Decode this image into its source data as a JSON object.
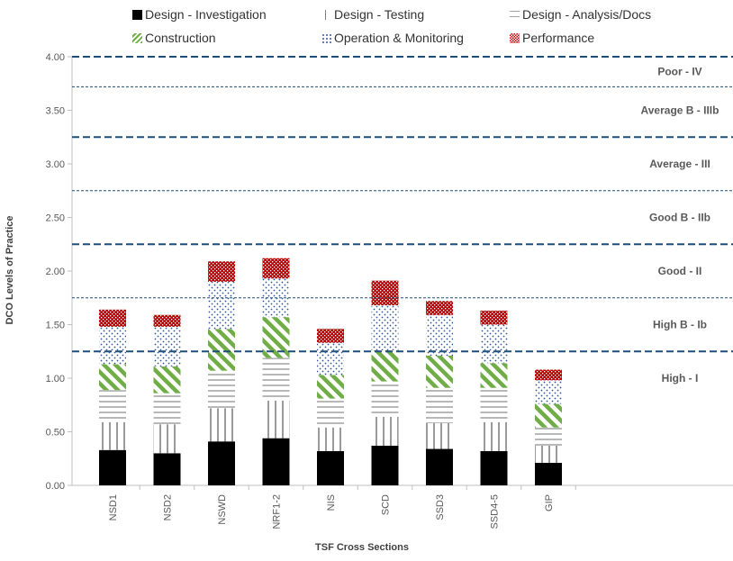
{
  "chart_data": {
    "type": "bar",
    "stacked": true,
    "xlabel": "TSF Cross Sections",
    "ylabel": "DCO Levels of Practice",
    "ylim": [
      0,
      4
    ],
    "yticks": [
      "0.00",
      "0.50",
      "1.00",
      "1.50",
      "2.00",
      "2.50",
      "3.00",
      "3.50",
      "4.00"
    ],
    "categories": [
      "NSD1",
      "NSD2",
      "NSWD",
      "NRF1-2",
      "NIS",
      "SCD",
      "SSD3",
      "SSD4-5",
      "GIP"
    ],
    "series": [
      {
        "name": "Design - Investigation",
        "pattern": "solid",
        "color": "#000000",
        "values": [
          0.33,
          0.3,
          0.41,
          0.44,
          0.32,
          0.37,
          0.34,
          0.32,
          0.21
        ]
      },
      {
        "name": "Design - Testing",
        "pattern": "vertical-lines",
        "color": "#808080",
        "values": [
          0.26,
          0.27,
          0.31,
          0.35,
          0.22,
          0.27,
          0.24,
          0.27,
          0.16
        ]
      },
      {
        "name": "Design - Analysis/Docs",
        "pattern": "horizontal-lines",
        "color": "#a6a6a6",
        "values": [
          0.3,
          0.29,
          0.35,
          0.4,
          0.27,
          0.33,
          0.33,
          0.32,
          0.17
        ]
      },
      {
        "name": "Construction",
        "pattern": "diagonal-stripes",
        "color": "#70ad47",
        "values": [
          0.24,
          0.25,
          0.39,
          0.38,
          0.22,
          0.29,
          0.3,
          0.23,
          0.22
        ]
      },
      {
        "name": "Operation & Monitoring",
        "pattern": "dots",
        "color": "#2f5597",
        "values": [
          0.35,
          0.37,
          0.44,
          0.36,
          0.3,
          0.42,
          0.38,
          0.36,
          0.22
        ]
      },
      {
        "name": "Performance",
        "pattern": "checks",
        "color": "#c00000",
        "values": [
          0.16,
          0.11,
          0.19,
          0.19,
          0.13,
          0.23,
          0.13,
          0.13,
          0.1
        ]
      }
    ],
    "thresholds": [
      {
        "value": 1.25,
        "style": "long-dash"
      },
      {
        "value": 1.75,
        "style": "short-dash"
      },
      {
        "value": 2.25,
        "style": "long-dash"
      },
      {
        "value": 2.75,
        "style": "short-dash"
      },
      {
        "value": 3.25,
        "style": "long-dash"
      },
      {
        "value": 3.72,
        "style": "short-dash"
      },
      {
        "value": 4.0,
        "style": "long-dash"
      }
    ],
    "zones": [
      {
        "label": "High - I",
        "value": 1.0
      },
      {
        "label": "High B - Ib",
        "value": 1.5
      },
      {
        "label": "Good - II",
        "value": 2.0
      },
      {
        "label": "Good B - IIb",
        "value": 2.5
      },
      {
        "label": "Average - III",
        "value": 3.0
      },
      {
        "label": "Average B - IIIb",
        "value": 3.5
      },
      {
        "label": "Poor - IV",
        "value": 3.86
      }
    ],
    "legend_position": "top",
    "grid": false
  }
}
